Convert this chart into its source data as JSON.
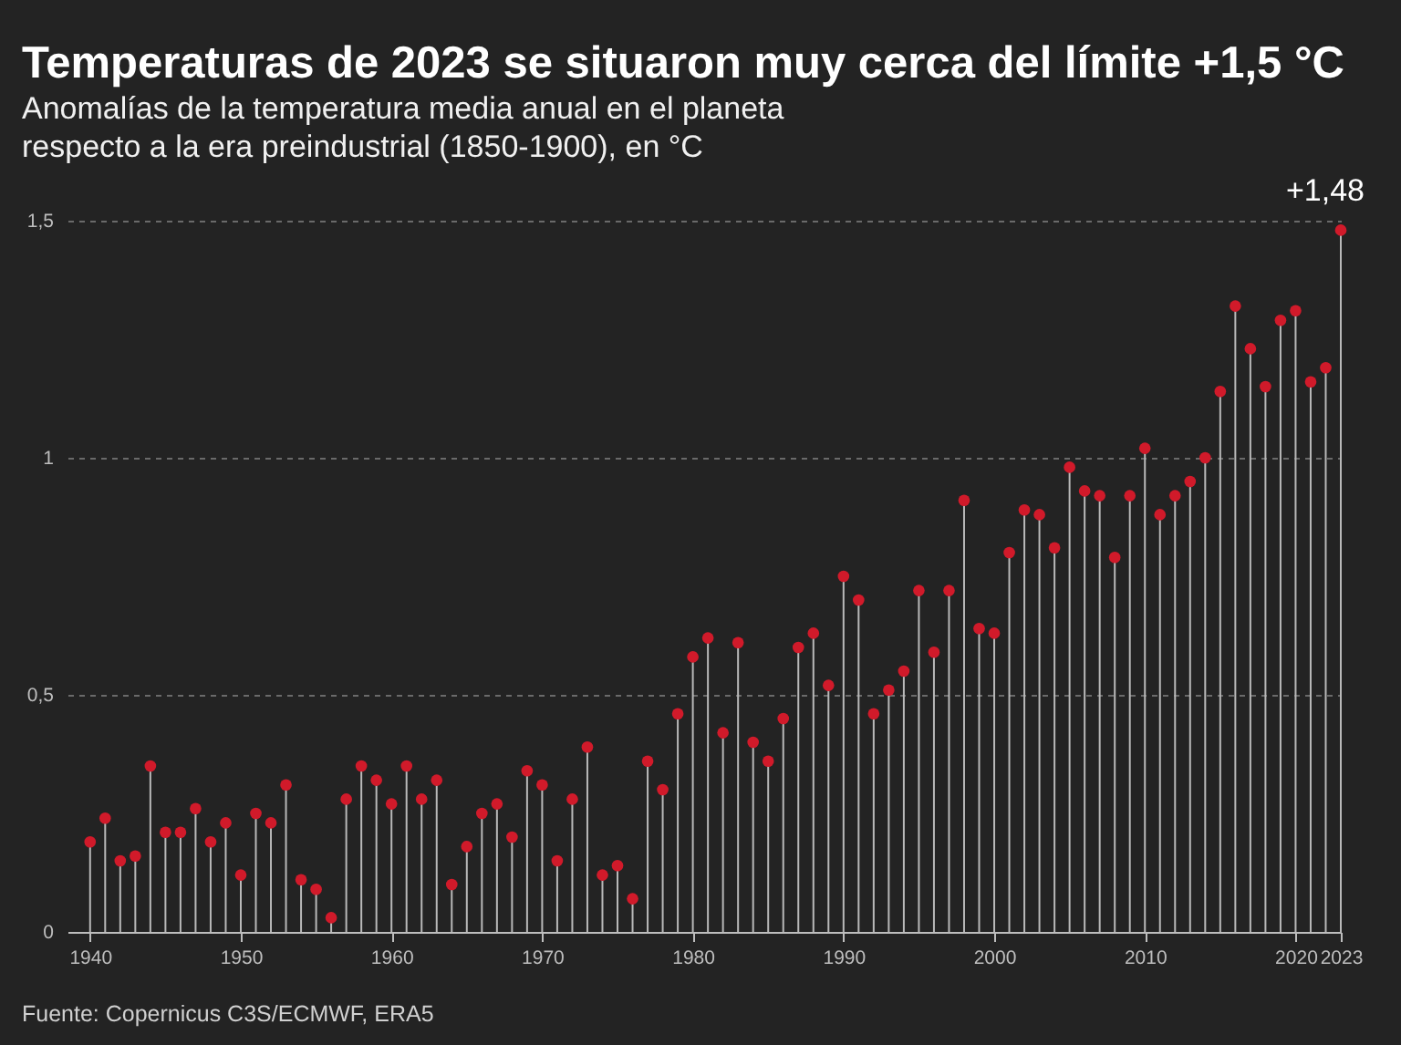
{
  "chart_data": {
    "type": "lollipop",
    "title": "Temperaturas de 2023 se situaron muy cerca del límite +1,5 °C",
    "subtitle": "Anomalías de la temperatura media anual en el planeta\nrespecto a la era preindustrial (1850-1900), en °C",
    "annotations": [
      {
        "text": "+1,48",
        "x": 2023,
        "y": 1.48
      },
      "Fuente: Copernicus C3S/ECMWF, ERA5"
    ],
    "x": [
      1940,
      1941,
      1942,
      1943,
      1944,
      1945,
      1946,
      1947,
      1948,
      1949,
      1950,
      1951,
      1952,
      1953,
      1954,
      1955,
      1956,
      1957,
      1958,
      1959,
      1960,
      1961,
      1962,
      1963,
      1964,
      1965,
      1966,
      1967,
      1968,
      1969,
      1970,
      1971,
      1972,
      1973,
      1974,
      1975,
      1976,
      1977,
      1978,
      1979,
      1980,
      1981,
      1982,
      1983,
      1984,
      1985,
      1986,
      1987,
      1988,
      1989,
      1990,
      1991,
      1992,
      1993,
      1994,
      1995,
      1996,
      1997,
      1998,
      1999,
      2000,
      2001,
      2002,
      2003,
      2004,
      2005,
      2006,
      2007,
      2008,
      2009,
      2010,
      2011,
      2012,
      2013,
      2014,
      2015,
      2016,
      2017,
      2018,
      2019,
      2020,
      2021,
      2022,
      2023
    ],
    "series": [
      {
        "color": "#d11a2a",
        "values": [
          0.19,
          0.24,
          0.15,
          0.16,
          0.35,
          0.21,
          0.21,
          0.26,
          0.19,
          0.23,
          0.12,
          0.25,
          0.23,
          0.31,
          0.11,
          0.09,
          0.03,
          0.28,
          0.35,
          0.32,
          0.27,
          0.35,
          0.28,
          0.32,
          0.1,
          0.18,
          0.25,
          0.27,
          0.2,
          0.34,
          0.31,
          0.15,
          0.28,
          0.39,
          0.12,
          0.14,
          0.07,
          0.36,
          0.3,
          0.46,
          0.58,
          0.62,
          0.42,
          0.61,
          0.4,
          0.36,
          0.45,
          0.6,
          0.63,
          0.52,
          0.75,
          0.7,
          0.46,
          0.51,
          0.55,
          0.72,
          0.59,
          0.72,
          0.91,
          0.64,
          0.63,
          0.8,
          0.89,
          0.88,
          0.81,
          0.98,
          0.93,
          0.92,
          0.79,
          0.92,
          1.02,
          0.88,
          0.92,
          0.95,
          1.0,
          1.14,
          1.32,
          1.23,
          1.15,
          1.29,
          1.31,
          1.16,
          1.19,
          1.48
        ]
      }
    ],
    "xlim": [
      1938.5,
      2023
    ],
    "xticks": [
      1940,
      1950,
      1960,
      1970,
      1980,
      1990,
      2000,
      2010,
      2020,
      2023
    ],
    "ylim": [
      0,
      1.5
    ],
    "yticks": [
      0,
      {
        "value": 0.5,
        "label": "0,5"
      },
      1,
      {
        "value": 1.5,
        "label": "1,5"
      }
    ],
    "grid": "y",
    "marker": "circle"
  }
}
